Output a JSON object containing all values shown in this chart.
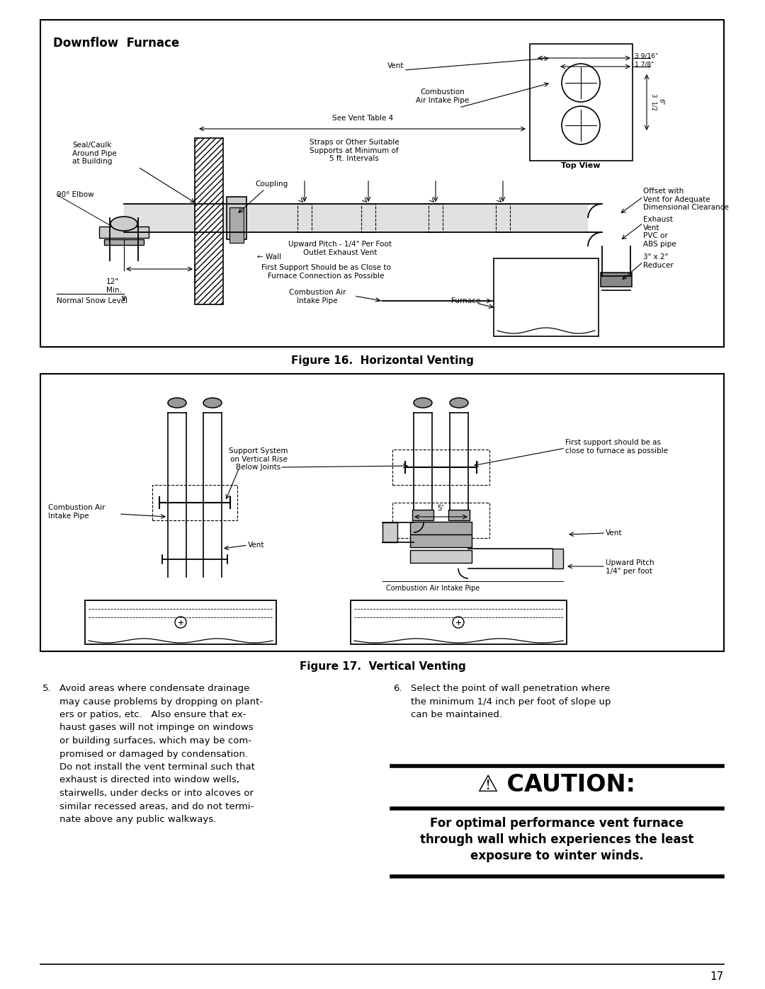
{
  "page_width": 10.8,
  "page_height": 13.97,
  "bg_color": "#ffffff",
  "fig16_title": "Downflow  Furnace",
  "fig16_caption": "Figure 16.  Horizontal Venting",
  "fig17_caption": "Figure 17.  Vertical Venting",
  "page_number": "17",
  "caution_title": "⚠ CAUTION:",
  "caution_body": "For optimal performance vent furnace\nthrough wall which experiences the least\nexposure to winter winds.",
  "item5_num": "5.",
  "item5_text": "Avoid areas where condensate drainage\nmay cause problems by dropping on plant-\ners or patios, etc.   Also ensure that ex-\nhaust gases will not impinge on windows\nor building surfaces, which may be com-\npromised or damaged by condensation.\nDo not install the vent terminal such that\nexhaust is directed into window wells,\nstairwells, under decks or into alcoves or\nsimilar recessed areas, and do not termi-\nnate above any public walkways.",
  "item6_num": "6.",
  "item6_text": "Select the point of wall penetration where\nthe minimum 1/4 inch per foot of slope up\ncan be maintained."
}
